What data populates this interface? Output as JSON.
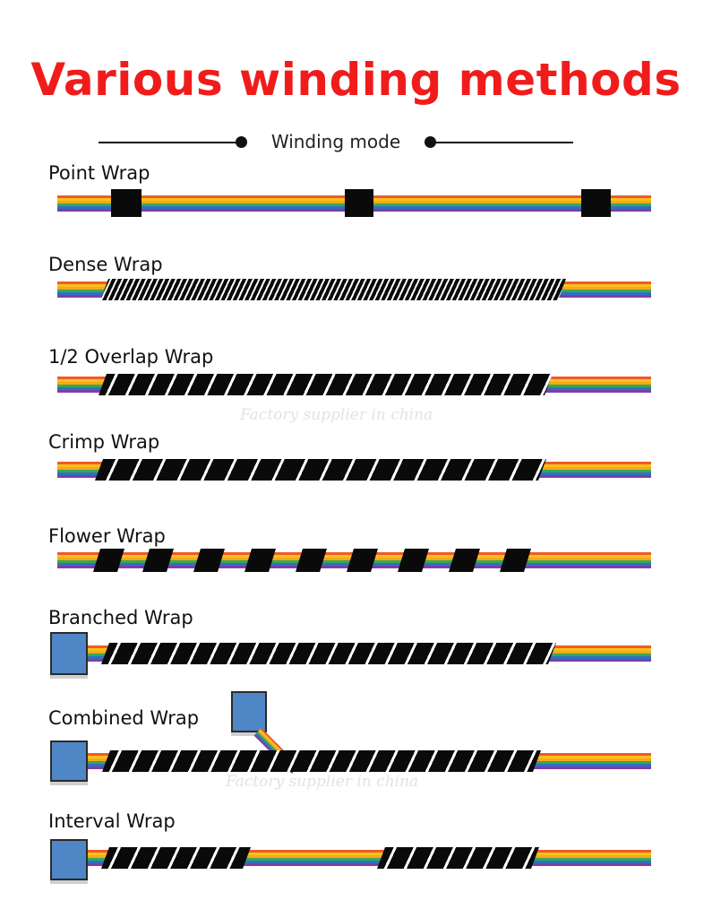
{
  "title": "Various winding methods",
  "subtitle": "Winding mode",
  "colors": {
    "title": "#f01c1c",
    "tape": "#0a0a0a",
    "connector": "#4f86c6"
  },
  "watermark": "Factory supplier in china",
  "wraps": [
    {
      "label": "Point Wrap"
    },
    {
      "label": "Dense Wrap"
    },
    {
      "label": "1/2 Overlap Wrap"
    },
    {
      "label": "Crimp Wrap"
    },
    {
      "label": "Flower Wrap"
    },
    {
      "label": "Branched Wrap"
    },
    {
      "label": "Combined Wrap"
    },
    {
      "label": "Interval Wrap"
    }
  ]
}
